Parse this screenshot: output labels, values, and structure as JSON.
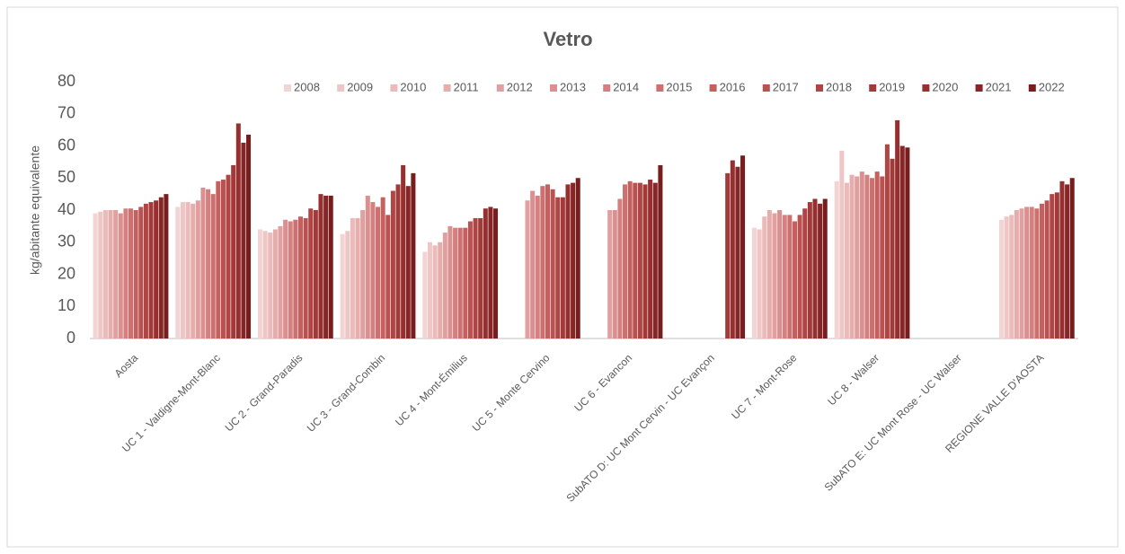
{
  "chart_data": {
    "type": "bar",
    "title": "Vetro",
    "y_label": "kg/abitante equivalente",
    "categories": [
      "Aosta",
      "UC 1 - Valdigne-Mont-Blanc",
      "UC 2 - Grand-Paradis",
      "UC 3 - Grand-Combin",
      "UC 4 - Mont-Émilius",
      "UC 5 - Monte Cervino",
      "UC 6 - Evancon",
      "SubATO D: UC Mont Cervin - UC Evançon",
      "UC 7 - Mont-Rose",
      "UC 8 - Walser",
      "SubATO E: UC Mont Rose - UC Walser",
      "REGIONE VALLE D'AOSTA"
    ],
    "ylim": [
      0,
      80
    ],
    "yticks": [
      0,
      10,
      20,
      30,
      40,
      50,
      60,
      70,
      80
    ],
    "grid": false,
    "legend": "top",
    "series": [
      {
        "name": "2008",
        "color": "#f2d4d4",
        "values": [
          39,
          41,
          34,
          32.5,
          27,
          null,
          null,
          null,
          34.5,
          49,
          null,
          37
        ]
      },
      {
        "name": "2009",
        "color": "#efc6c6",
        "values": [
          39.5,
          42.5,
          33.5,
          33.5,
          30,
          null,
          null,
          null,
          34,
          58.5,
          null,
          38
        ]
      },
      {
        "name": "2010",
        "color": "#ebbaba",
        "values": [
          40,
          42.5,
          33,
          37.5,
          29,
          null,
          null,
          null,
          38,
          48.5,
          null,
          38.5
        ]
      },
      {
        "name": "2011",
        "color": "#e6adad",
        "values": [
          40,
          42,
          34,
          37.5,
          30,
          null,
          null,
          null,
          40,
          51,
          null,
          40
        ]
      },
      {
        "name": "2012",
        "color": "#e0a0a0",
        "values": [
          40,
          43,
          35,
          40,
          33,
          43,
          40,
          null,
          39,
          50.5,
          null,
          40.5
        ]
      },
      {
        "name": "2013",
        "color": "#da9090",
        "values": [
          39,
          47,
          37,
          44.5,
          35,
          46,
          40,
          null,
          40,
          52,
          null,
          41
        ]
      },
      {
        "name": "2014",
        "color": "#d48080",
        "values": [
          40.5,
          46.5,
          36.5,
          42.5,
          34.5,
          44.5,
          43.5,
          null,
          38.5,
          51,
          null,
          41
        ]
      },
      {
        "name": "2015",
        "color": "#cc7070",
        "values": [
          40.5,
          45,
          37,
          41,
          34.5,
          47.5,
          48,
          null,
          38.5,
          50,
          null,
          40.5
        ]
      },
      {
        "name": "2016",
        "color": "#c46060",
        "values": [
          40,
          49,
          38,
          44,
          34.5,
          48,
          49,
          null,
          36.5,
          52,
          null,
          42
        ]
      },
      {
        "name": "2017",
        "color": "#bb5252",
        "values": [
          41,
          49.5,
          37.5,
          38.5,
          36.5,
          46.5,
          48.5,
          null,
          38.5,
          50.5,
          null,
          43
        ]
      },
      {
        "name": "2018",
        "color": "#b04545",
        "values": [
          42,
          51,
          40.5,
          46,
          37.5,
          44,
          48.5,
          null,
          40.5,
          60.5,
          null,
          45
        ]
      },
      {
        "name": "2019",
        "color": "#a33a3a",
        "values": [
          42.5,
          54,
          40,
          48,
          37.5,
          44,
          48,
          51.5,
          42.5,
          56,
          null,
          45.5
        ]
      },
      {
        "name": "2020",
        "color": "#962f2f",
        "values": [
          43,
          67,
          45,
          54,
          40.5,
          48,
          49.5,
          55.5,
          43.5,
          68,
          null,
          49
        ]
      },
      {
        "name": "2021",
        "color": "#872626",
        "values": [
          44,
          61,
          44.5,
          47.5,
          41,
          48.5,
          48.5,
          53.5,
          42,
          60,
          null,
          48
        ]
      },
      {
        "name": "2022",
        "color": "#771d1d",
        "values": [
          45,
          63.5,
          44.5,
          51.5,
          40.5,
          50,
          54,
          57,
          43.5,
          59.5,
          null,
          50
        ]
      }
    ]
  }
}
